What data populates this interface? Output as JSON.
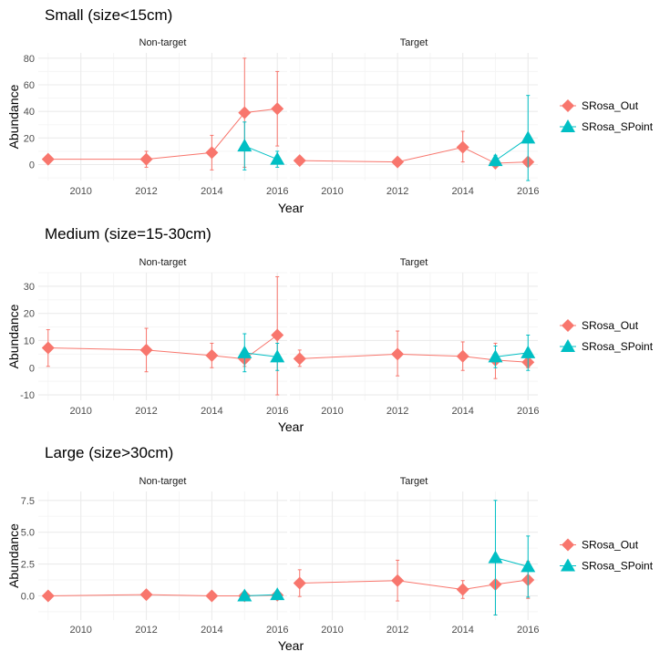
{
  "legend": {
    "out_label": "SRosa_Out",
    "spoint_label": "SRosa_SPoint"
  },
  "colors": {
    "out": "#F8766D",
    "spoint": "#00BFC4",
    "grid_major": "#EBEBEB",
    "grid_minor": "#F5F5F5",
    "text": "#000000",
    "tick_text": "#4D4D4D"
  },
  "chart_data": [
    {
      "type": "line",
      "title": "Small (size<15cm)",
      "xlabel": "Year",
      "ylabel": "Abundance",
      "xlim": [
        2008.7,
        2016.3
      ],
      "ylim": [
        -12,
        84
      ],
      "x_ticks": [
        2010,
        2012,
        2014,
        2016
      ],
      "y_ticks": [
        0,
        20,
        40,
        60,
        80
      ],
      "grid": true,
      "legend_position": "right",
      "facets": [
        {
          "label": "Non-target",
          "series": [
            {
              "name": "SRosa_Out",
              "points": [
                {
                  "x": 2009,
                  "y": 4,
                  "lo": 4,
                  "hi": 4
                },
                {
                  "x": 2012,
                  "y": 4,
                  "lo": -2,
                  "hi": 10
                },
                {
                  "x": 2014,
                  "y": 9,
                  "lo": -4,
                  "hi": 22
                },
                {
                  "x": 2015,
                  "y": 39,
                  "lo": -2,
                  "hi": 80
                },
                {
                  "x": 2016,
                  "y": 42,
                  "lo": 14,
                  "hi": 70
                }
              ]
            },
            {
              "name": "SRosa_SPoint",
              "points": [
                {
                  "x": 2015,
                  "y": 14,
                  "lo": -4,
                  "hi": 32
                },
                {
                  "x": 2016,
                  "y": 4,
                  "lo": -2,
                  "hi": 10
                }
              ]
            }
          ]
        },
        {
          "label": "Target",
          "series": [
            {
              "name": "SRosa_Out",
              "points": [
                {
                  "x": 2009,
                  "y": 3,
                  "lo": 3,
                  "hi": 3
                },
                {
                  "x": 2012,
                  "y": 2,
                  "lo": 2,
                  "hi": 2
                },
                {
                  "x": 2014,
                  "y": 13,
                  "lo": 2,
                  "hi": 25
                },
                {
                  "x": 2015,
                  "y": 1,
                  "lo": -1,
                  "hi": 3
                },
                {
                  "x": 2016,
                  "y": 2,
                  "lo": -1,
                  "hi": 5
                }
              ]
            },
            {
              "name": "SRosa_SPoint",
              "points": [
                {
                  "x": 2015,
                  "y": 3,
                  "lo": -1,
                  "hi": 7
                },
                {
                  "x": 2016,
                  "y": 20,
                  "lo": -12,
                  "hi": 52
                }
              ]
            }
          ]
        }
      ]
    },
    {
      "type": "line",
      "title": "Medium (size=15-30cm)",
      "xlabel": "Year",
      "ylabel": "Abundance",
      "xlim": [
        2008.7,
        2016.3
      ],
      "ylim": [
        -12,
        35
      ],
      "x_ticks": [
        2010,
        2012,
        2014,
        2016
      ],
      "y_ticks": [
        -10,
        0,
        10,
        20,
        30
      ],
      "grid": true,
      "legend_position": "right",
      "facets": [
        {
          "label": "Non-target",
          "series": [
            {
              "name": "SRosa_Out",
              "points": [
                {
                  "x": 2009,
                  "y": 7.3,
                  "lo": 0.5,
                  "hi": 14
                },
                {
                  "x": 2012,
                  "y": 6.5,
                  "lo": -1.5,
                  "hi": 14.5
                },
                {
                  "x": 2014,
                  "y": 4.5,
                  "lo": 0,
                  "hi": 9
                },
                {
                  "x": 2015,
                  "y": 3.2,
                  "lo": 0.5,
                  "hi": 6
                },
                {
                  "x": 2016,
                  "y": 12,
                  "lo": -10,
                  "hi": 33.5
                }
              ]
            },
            {
              "name": "SRosa_SPoint",
              "points": [
                {
                  "x": 2015,
                  "y": 5.5,
                  "lo": -1.5,
                  "hi": 12.5
                },
                {
                  "x": 2016,
                  "y": 4,
                  "lo": -1,
                  "hi": 9
                }
              ]
            }
          ]
        },
        {
          "label": "Target",
          "series": [
            {
              "name": "SRosa_Out",
              "points": [
                {
                  "x": 2009,
                  "y": 3.3,
                  "lo": 0.5,
                  "hi": 6.5
                },
                {
                  "x": 2012,
                  "y": 5,
                  "lo": -3,
                  "hi": 13.5
                },
                {
                  "x": 2014,
                  "y": 4.2,
                  "lo": -1,
                  "hi": 9.5
                },
                {
                  "x": 2015,
                  "y": 2.8,
                  "lo": -4,
                  "hi": 9
                },
                {
                  "x": 2016,
                  "y": 2,
                  "lo": 0,
                  "hi": 4
                }
              ]
            },
            {
              "name": "SRosa_SPoint",
              "points": [
                {
                  "x": 2015,
                  "y": 4,
                  "lo": 0,
                  "hi": 8
                },
                {
                  "x": 2016,
                  "y": 5.5,
                  "lo": -1,
                  "hi": 12
                }
              ]
            }
          ]
        }
      ]
    },
    {
      "type": "line",
      "title": "Large (size>30cm)",
      "xlabel": "Year",
      "ylabel": "Abundance",
      "xlim": [
        2008.7,
        2016.3
      ],
      "ylim": [
        -1.9,
        8.2
      ],
      "x_ticks": [
        2010,
        2012,
        2014,
        2016
      ],
      "y_ticks": [
        0.0,
        2.5,
        5.0,
        7.5
      ],
      "y_tick_labels": [
        "0.0",
        "2.5",
        "5.0",
        "7.5"
      ],
      "grid": true,
      "legend_position": "right",
      "facets": [
        {
          "label": "Non-target",
          "series": [
            {
              "name": "SRosa_Out",
              "points": [
                {
                  "x": 2009,
                  "y": 0.0,
                  "lo": 0.0,
                  "hi": 0.0
                },
                {
                  "x": 2012,
                  "y": 0.1,
                  "lo": 0.0,
                  "hi": 0.2
                },
                {
                  "x": 2014,
                  "y": 0.0,
                  "lo": 0.0,
                  "hi": 0.0
                },
                {
                  "x": 2015,
                  "y": 0.0,
                  "lo": -0.1,
                  "hi": 0.1
                },
                {
                  "x": 2016,
                  "y": 0.05,
                  "lo": 0.0,
                  "hi": 0.1
                }
              ]
            },
            {
              "name": "SRosa_SPoint",
              "points": [
                {
                  "x": 2015,
                  "y": 0.0,
                  "lo": -0.1,
                  "hi": 0.1
                },
                {
                  "x": 2016,
                  "y": 0.1,
                  "lo": 0.0,
                  "hi": 0.2
                }
              ]
            }
          ]
        },
        {
          "label": "Target",
          "series": [
            {
              "name": "SRosa_Out",
              "points": [
                {
                  "x": 2009,
                  "y": 1.0,
                  "lo": -0.05,
                  "hi": 2.05
                },
                {
                  "x": 2012,
                  "y": 1.2,
                  "lo": -0.4,
                  "hi": 2.8
                },
                {
                  "x": 2014,
                  "y": 0.5,
                  "lo": -0.2,
                  "hi": 1.2
                },
                {
                  "x": 2015,
                  "y": 0.9,
                  "lo": -1.5,
                  "hi": 3.3
                },
                {
                  "x": 2016,
                  "y": 1.25,
                  "lo": -0.2,
                  "hi": 2.7
                }
              ]
            },
            {
              "name": "SRosa_SPoint",
              "points": [
                {
                  "x": 2015,
                  "y": 3.0,
                  "lo": -1.5,
                  "hi": 7.5
                },
                {
                  "x": 2016,
                  "y": 2.3,
                  "lo": -0.1,
                  "hi": 4.7
                }
              ]
            }
          ]
        }
      ]
    }
  ]
}
